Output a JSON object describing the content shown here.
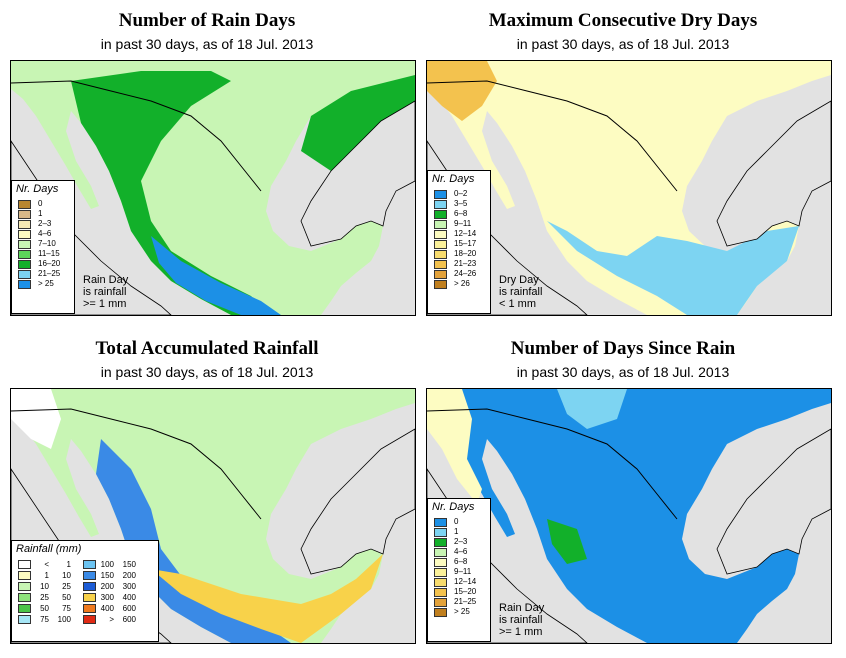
{
  "panels": [
    {
      "title": "Number of Rain Days",
      "subtitle": "in past 30 days, as of  18 Jul. 2013",
      "legend_title": "Nr. Days",
      "note": [
        "Rain Day",
        "is rainfall",
        ">= 1 mm"
      ],
      "legend": [
        {
          "label": "0",
          "color": "#b8862f"
        },
        {
          "label": "1",
          "color": "#d8b888"
        },
        {
          "label": "2–3",
          "color": "#f6e9b4"
        },
        {
          "label": "4–6",
          "color": "#fdfcc2"
        },
        {
          "label": "7–10",
          "color": "#c8f5b4"
        },
        {
          "label": "11–15",
          "color": "#5cd75a"
        },
        {
          "label": "16–20",
          "color": "#12b02a"
        },
        {
          "label": "21–25",
          "color": "#7dd4f2"
        },
        {
          "label": "> 25",
          "color": "#1c90e6"
        }
      ],
      "land_color": "#c8f5b4"
    },
    {
      "title": "Maximum Consecutive Dry Days",
      "subtitle": "in past 30 days, as of  18 Jul. 2013",
      "legend_title": "Nr. Days",
      "note": [
        "Dry Day",
        "is rainfall",
        "< 1 mm"
      ],
      "legend": [
        {
          "label": "0–2",
          "color": "#1c90e6"
        },
        {
          "label": "3–5",
          "color": "#7dd4f2"
        },
        {
          "label": "6–8",
          "color": "#12b02a"
        },
        {
          "label": "9–11",
          "color": "#c8f5b4"
        },
        {
          "label": "12–14",
          "color": "#fdfcc2"
        },
        {
          "label": "15–17",
          "color": "#fbf19a"
        },
        {
          "label": "18–20",
          "color": "#f8dc6e"
        },
        {
          "label": "21–23",
          "color": "#f3c24e"
        },
        {
          "label": "24–26",
          "color": "#e3a23a"
        },
        {
          "label": "> 26",
          "color": "#c07f1e"
        }
      ],
      "land_color": "#fdfcc2"
    },
    {
      "title": "Total Accumulated Rainfall",
      "subtitle": "in past 30 days, as of  18 Jul. 2013",
      "legend_title": "Rainfall (mm)",
      "legend_left": [
        {
          "a": "<",
          "b": "1",
          "color": "#ffffff"
        },
        {
          "a": "1",
          "b": "10",
          "color": "#fdfcc2"
        },
        {
          "a": "10",
          "b": "25",
          "color": "#c8f5b4"
        },
        {
          "a": "25",
          "b": "50",
          "color": "#8ee27c"
        },
        {
          "a": "50",
          "b": "75",
          "color": "#4cc448"
        },
        {
          "a": "75",
          "b": "100",
          "color": "#a6e6f6"
        }
      ],
      "legend_right": [
        {
          "a": "100",
          "b": "150",
          "color": "#6cc4f2"
        },
        {
          "a": "150",
          "b": "200",
          "color": "#3a8ae6"
        },
        {
          "a": "200",
          "b": "300",
          "color": "#1c5cd6"
        },
        {
          "a": "300",
          "b": "400",
          "color": "#f8d24a"
        },
        {
          "a": "400",
          "b": "600",
          "color": "#f07a1e"
        },
        {
          "a": ">",
          "b": "600",
          "color": "#e02a14"
        }
      ],
      "land_color": "#c8f5b4"
    },
    {
      "title": "Number of Days Since Rain",
      "subtitle": "in past 30 days, as of  18 Jul. 2013",
      "legend_title": "Nr. Days",
      "note": [
        "Rain Day",
        "is rainfall",
        ">= 1 mm"
      ],
      "legend": [
        {
          "label": "0",
          "color": "#1c90e6"
        },
        {
          "label": "1",
          "color": "#7dd4f2"
        },
        {
          "label": "2–3",
          "color": "#12b02a"
        },
        {
          "label": "4–6",
          "color": "#c8f5b4"
        },
        {
          "label": "6–8",
          "color": "#fdfcc2"
        },
        {
          "label": "9–11",
          "color": "#fbf19a"
        },
        {
          "label": "12–14",
          "color": "#f8dc6e"
        },
        {
          "label": "15–20",
          "color": "#f3c24e"
        },
        {
          "label": "21–25",
          "color": "#e3a23a"
        },
        {
          "label": "> 25",
          "color": "#c07f1e"
        }
      ],
      "land_color": "#1c90e6"
    }
  ]
}
